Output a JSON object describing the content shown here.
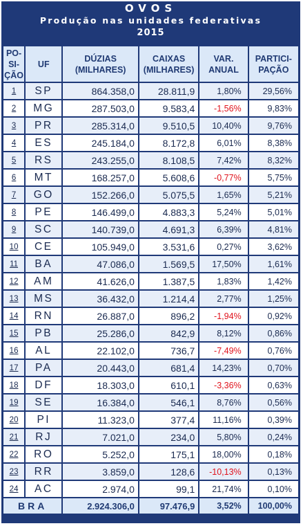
{
  "header": {
    "title": "OVOS",
    "subtitle": "Produção nas unidades federativas",
    "year": "2015"
  },
  "columns": {
    "pos_line1": "PO-",
    "pos_line2": "SI-",
    "pos_line3": "ÇÃO",
    "uf": "UF",
    "duzias_line1": "DÚZIAS",
    "duzias_line2": "(MILHARES)",
    "caixas_line1": "CAIXAS",
    "caixas_line2": "(MILHARES)",
    "var_line1": "VAR.",
    "var_line2": "ANUAL",
    "part_line1": "PARTICI-",
    "part_line2": "PAÇÃO"
  },
  "rows": [
    {
      "pos": "1",
      "uf": "SP",
      "duzias": "864.358,0",
      "caixas": "28.811,9",
      "var": "1,80%",
      "part": "29,56%"
    },
    {
      "pos": "2",
      "uf": "MG",
      "duzias": "287.503,0",
      "caixas": "9.583,4",
      "var": "-1,56%",
      "part": "9,83%"
    },
    {
      "pos": "3",
      "uf": "PR",
      "duzias": "285.314,0",
      "caixas": "9.510,5",
      "var": "10,40%",
      "part": "9,76%"
    },
    {
      "pos": "4",
      "uf": "ES",
      "duzias": "245.184,0",
      "caixas": "8.172,8",
      "var": "6,01%",
      "part": "8,38%"
    },
    {
      "pos": "5",
      "uf": "RS",
      "duzias": "243.255,0",
      "caixas": "8.108,5",
      "var": "7,42%",
      "part": "8,32%"
    },
    {
      "pos": "6",
      "uf": "MT",
      "duzias": "168.257,0",
      "caixas": "5.608,6",
      "var": "-0,77%",
      "part": "5,75%"
    },
    {
      "pos": "7",
      "uf": "GO",
      "duzias": "152.266,0",
      "caixas": "5.075,5",
      "var": "1,65%",
      "part": "5,21%"
    },
    {
      "pos": "8",
      "uf": "PE",
      "duzias": "146.499,0",
      "caixas": "4.883,3",
      "var": "5,24%",
      "part": "5,01%"
    },
    {
      "pos": "9",
      "uf": "SC",
      "duzias": "140.739,0",
      "caixas": "4.691,3",
      "var": "6,39%",
      "part": "4,81%"
    },
    {
      "pos": "10",
      "uf": "CE",
      "duzias": "105.949,0",
      "caixas": "3.531,6",
      "var": "0,27%",
      "part": "3,62%"
    },
    {
      "pos": "11",
      "uf": "BA",
      "duzias": "47.086,0",
      "caixas": "1.569,5",
      "var": "17,50%",
      "part": "1,61%"
    },
    {
      "pos": "12",
      "uf": "AM",
      "duzias": "41.626,0",
      "caixas": "1.387,5",
      "var": "1,83%",
      "part": "1,42%"
    },
    {
      "pos": "13",
      "uf": "MS",
      "duzias": "36.432,0",
      "caixas": "1.214,4",
      "var": "2,77%",
      "part": "1,25%"
    },
    {
      "pos": "14",
      "uf": "RN",
      "duzias": "26.887,0",
      "caixas": "896,2",
      "var": "-1,94%",
      "part": "0,92%"
    },
    {
      "pos": "15",
      "uf": "PB",
      "duzias": "25.286,0",
      "caixas": "842,9",
      "var": "8,12%",
      "part": "0,86%"
    },
    {
      "pos": "16",
      "uf": "AL",
      "duzias": "22.102,0",
      "caixas": "736,7",
      "var": "-7,49%",
      "part": "0,76%"
    },
    {
      "pos": "17",
      "uf": "PA",
      "duzias": "20.443,0",
      "caixas": "681,4",
      "var": "14,23%",
      "part": "0,70%"
    },
    {
      "pos": "18",
      "uf": "DF",
      "duzias": "18.303,0",
      "caixas": "610,1",
      "var": "-3,36%",
      "part": "0,63%"
    },
    {
      "pos": "19",
      "uf": "SE",
      "duzias": "16.384,0",
      "caixas": "546,1",
      "var": "8,76%",
      "part": "0,56%"
    },
    {
      "pos": "20",
      "uf": "PI",
      "duzias": "11.323,0",
      "caixas": "377,4",
      "var": "11,16%",
      "part": "0,39%"
    },
    {
      "pos": "21",
      "uf": "RJ",
      "duzias": "7.021,0",
      "caixas": "234,0",
      "var": "5,80%",
      "part": "0,24%"
    },
    {
      "pos": "22",
      "uf": "RO",
      "duzias": "5.252,0",
      "caixas": "175,1",
      "var": "18,00%",
      "part": "0,18%"
    },
    {
      "pos": "23",
      "uf": "RR",
      "duzias": "3.859,0",
      "caixas": "128,6",
      "var": "-10,13%",
      "part": "0,13%"
    },
    {
      "pos": "24",
      "uf": "AC",
      "duzias": "2.974,0",
      "caixas": "99,1",
      "var": "21,74%",
      "part": "0,10%"
    }
  ],
  "total": {
    "label": "BRA",
    "duzias": "2.924.306,0",
    "caixas": "97.476,9",
    "var": "3,52%",
    "part": "100,00%"
  },
  "colors": {
    "header_bg": "#1f3978",
    "negative": "#e0121c",
    "text": "#1a2a50"
  }
}
